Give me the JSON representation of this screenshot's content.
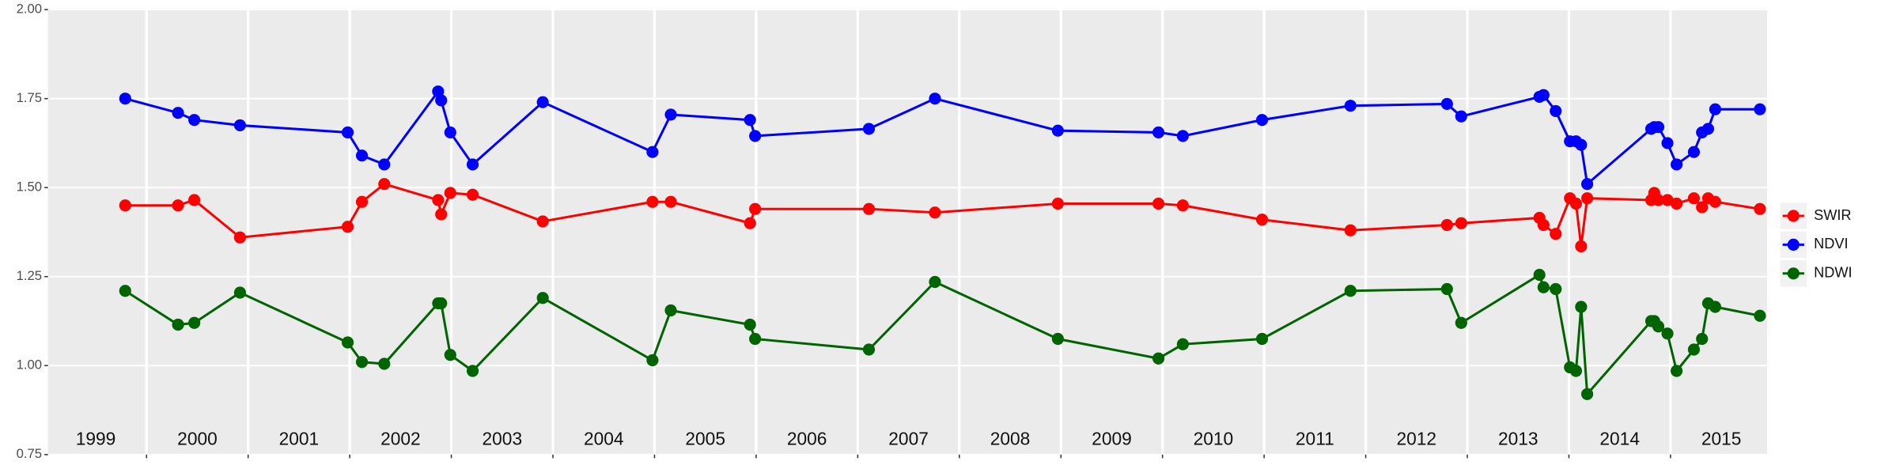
{
  "chart_data": {
    "type": "line",
    "x": [
      1999.79,
      2000.31,
      2000.47,
      2000.92,
      2001.98,
      2002.12,
      2002.34,
      2002.87,
      2002.9,
      2002.99,
      2003.21,
      2003.9,
      2004.98,
      2005.16,
      2005.94,
      2005.99,
      2007.11,
      2007.76,
      2008.97,
      2009.96,
      2010.2,
      2010.98,
      2011.85,
      2012.8,
      2012.94,
      2013.71,
      2013.75,
      2013.87,
      2014.01,
      2014.07,
      2014.12,
      2014.18,
      2014.81,
      2014.84,
      2014.88,
      2014.97,
      2015.06,
      2015.23,
      2015.31,
      2015.37,
      2015.44,
      2015.88
    ],
    "series": [
      {
        "name": "SWIR",
        "color": "#ff0000",
        "values": [
          1.45,
          1.45,
          1.465,
          1.36,
          1.39,
          1.46,
          1.51,
          1.465,
          1.425,
          1.485,
          1.48,
          1.405,
          1.46,
          1.46,
          1.4,
          1.44,
          1.44,
          1.43,
          1.455,
          1.455,
          1.45,
          1.41,
          1.38,
          1.395,
          1.4,
          1.415,
          1.395,
          1.37,
          1.47,
          1.455,
          1.335,
          1.47,
          1.465,
          1.485,
          1.465,
          1.465,
          1.455,
          1.47,
          1.445,
          1.47,
          1.46,
          1.44
        ]
      },
      {
        "name": "NDVI",
        "color": "#0000ff",
        "values": [
          1.75,
          1.71,
          1.69,
          1.675,
          1.655,
          1.59,
          1.565,
          1.77,
          1.745,
          1.655,
          1.565,
          1.74,
          1.6,
          1.705,
          1.69,
          1.645,
          1.665,
          1.75,
          1.66,
          1.655,
          1.645,
          1.69,
          1.73,
          1.735,
          1.7,
          1.755,
          1.76,
          1.715,
          1.63,
          1.63,
          1.62,
          1.51,
          1.665,
          1.67,
          1.67,
          1.625,
          1.565,
          1.6,
          1.655,
          1.665,
          1.72,
          1.72
        ]
      },
      {
        "name": "NDWI",
        "color": "#006400",
        "values": [
          1.21,
          1.115,
          1.12,
          1.205,
          1.065,
          1.01,
          1.005,
          1.175,
          1.175,
          1.03,
          0.985,
          1.19,
          1.015,
          1.155,
          1.115,
          1.075,
          1.045,
          1.235,
          1.075,
          1.02,
          1.06,
          1.075,
          1.21,
          1.215,
          1.12,
          1.255,
          1.22,
          1.215,
          0.995,
          0.985,
          1.165,
          0.92,
          1.125,
          1.125,
          1.11,
          1.09,
          0.985,
          1.045,
          1.075,
          1.175,
          1.165,
          1.14
        ]
      }
    ],
    "xlim": [
      1999.03,
      2015.95
    ],
    "xticks": [
      2000,
      2001,
      2002,
      2003,
      2004,
      2005,
      2006,
      2007,
      2008,
      2009,
      2010,
      2011,
      2012,
      2013,
      2014,
      2015
    ],
    "year_labels": [
      {
        "value": 1999.5,
        "label": "1999"
      },
      {
        "value": 2000.5,
        "label": "2000"
      },
      {
        "value": 2001.5,
        "label": "2001"
      },
      {
        "value": 2002.5,
        "label": "2002"
      },
      {
        "value": 2003.5,
        "label": "2003"
      },
      {
        "value": 2004.5,
        "label": "2004"
      },
      {
        "value": 2005.5,
        "label": "2005"
      },
      {
        "value": 2006.5,
        "label": "2006"
      },
      {
        "value": 2007.5,
        "label": "2007"
      },
      {
        "value": 2008.5,
        "label": "2008"
      },
      {
        "value": 2009.5,
        "label": "2009"
      },
      {
        "value": 2010.5,
        "label": "2010"
      },
      {
        "value": 2011.5,
        "label": "2011"
      },
      {
        "value": 2012.5,
        "label": "2012"
      },
      {
        "value": 2013.5,
        "label": "2013"
      },
      {
        "value": 2014.5,
        "label": "2014"
      },
      {
        "value": 2015.5,
        "label": "2015"
      }
    ],
    "ylim": [
      0.75,
      2.0
    ],
    "yticks": [
      {
        "value": 0.75,
        "label": "0.75"
      },
      {
        "value": 1.0,
        "label": "1.00"
      },
      {
        "value": 1.25,
        "label": "1.25"
      },
      {
        "value": 1.5,
        "label": "1.50"
      },
      {
        "value": 1.75,
        "label": "1.75"
      },
      {
        "value": 2.0,
        "label": "2.00"
      }
    ],
    "grid": true,
    "legend": "right"
  }
}
